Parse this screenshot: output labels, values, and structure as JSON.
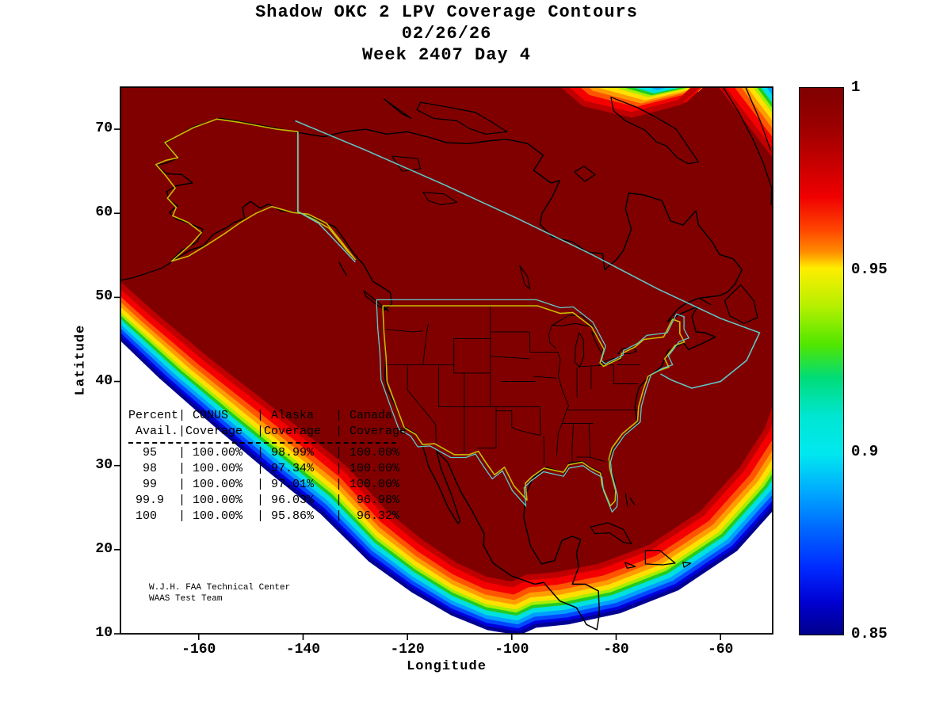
{
  "title": {
    "line1": "Shadow OKC 2 LPV Coverage Contours",
    "line2": "02/26/26",
    "line3": "Week 2407 Day 4"
  },
  "axes": {
    "xlabel": "Longitude",
    "ylabel": "Latitude",
    "x_tick_labels": [
      "-160",
      "-140",
      "-120",
      "-100",
      "-80",
      "-60"
    ],
    "y_tick_labels": [
      "10",
      "20",
      "30",
      "40",
      "50",
      "60",
      "70"
    ]
  },
  "colorbar": {
    "tick_labels": [
      "1",
      "0.95",
      "0.9",
      "0.85"
    ],
    "min": 0.85,
    "max": 1,
    "colormap": "jet"
  },
  "coverage_table": {
    "lines": [
      "Percent| CONUS    | Alaska   | Canada",
      " Avail.|Coverage  |Coverage  | Coverage",
      "  95   | 100.00%  | 98.99%   | 100.00%",
      "  98   | 100.00%  | 97.34%   | 100.00%",
      "  99   | 100.00%  | 97.01%   | 100.00%",
      " 99.9  | 100.00%  | 96.03%   |  96.98%",
      " 100   | 100.00%  | 95.86%   |  96.32%"
    ]
  },
  "credit": {
    "line1": "W.J.H. FAA Technical Center",
    "line2": "WAAS Test Team"
  },
  "chart_data": {
    "type": "heatmap",
    "subtype": "geographic-availability-contour",
    "title": "Shadow OKC 2 LPV Coverage Contours",
    "subtitle_date": "02/26/26",
    "subtitle_week": "Week 2407 Day 4",
    "xlabel": "Longitude",
    "ylabel": "Latitude",
    "xlim": [
      -175,
      -50
    ],
    "ylim": [
      10,
      75
    ],
    "x_ticks": [
      -160,
      -140,
      -120,
      -100,
      -80,
      -60
    ],
    "y_ticks": [
      10,
      20,
      30,
      40,
      50,
      60,
      70
    ],
    "colorbar": {
      "range": [
        0.85,
        1
      ],
      "ticks": [
        1,
        0.95,
        0.9,
        0.85
      ],
      "colormap": "jet"
    },
    "description": "WAAS LPV availability contours over North America: interior plateau at 1.0 (dark red) covering CONUS, Alaska and Canada, with a jet-colormap fringe descending to 0.85 (dark blue) along the southwest Pacific, southern Mexico/Caribbean and northeast Atlantic edges of the coverage region.",
    "coverage_statistics": {
      "columns": [
        "Percent Avail.",
        "CONUS Coverage",
        "Alaska Coverage",
        "Canada Coverage"
      ],
      "rows": [
        [
          "95",
          "100.00%",
          "98.99%",
          "100.00%"
        ],
        [
          "98",
          "100.00%",
          "97.34%",
          "100.00%"
        ],
        [
          "99",
          "100.00%",
          "97.01%",
          "100.00%"
        ],
        [
          "99.9",
          "100.00%",
          "96.03%",
          "96.98%"
        ],
        [
          "100",
          "100.00%",
          "95.86%",
          "96.32%"
        ]
      ]
    },
    "credit": "W.J.H. FAA Technical Center / WAAS Test Team"
  }
}
